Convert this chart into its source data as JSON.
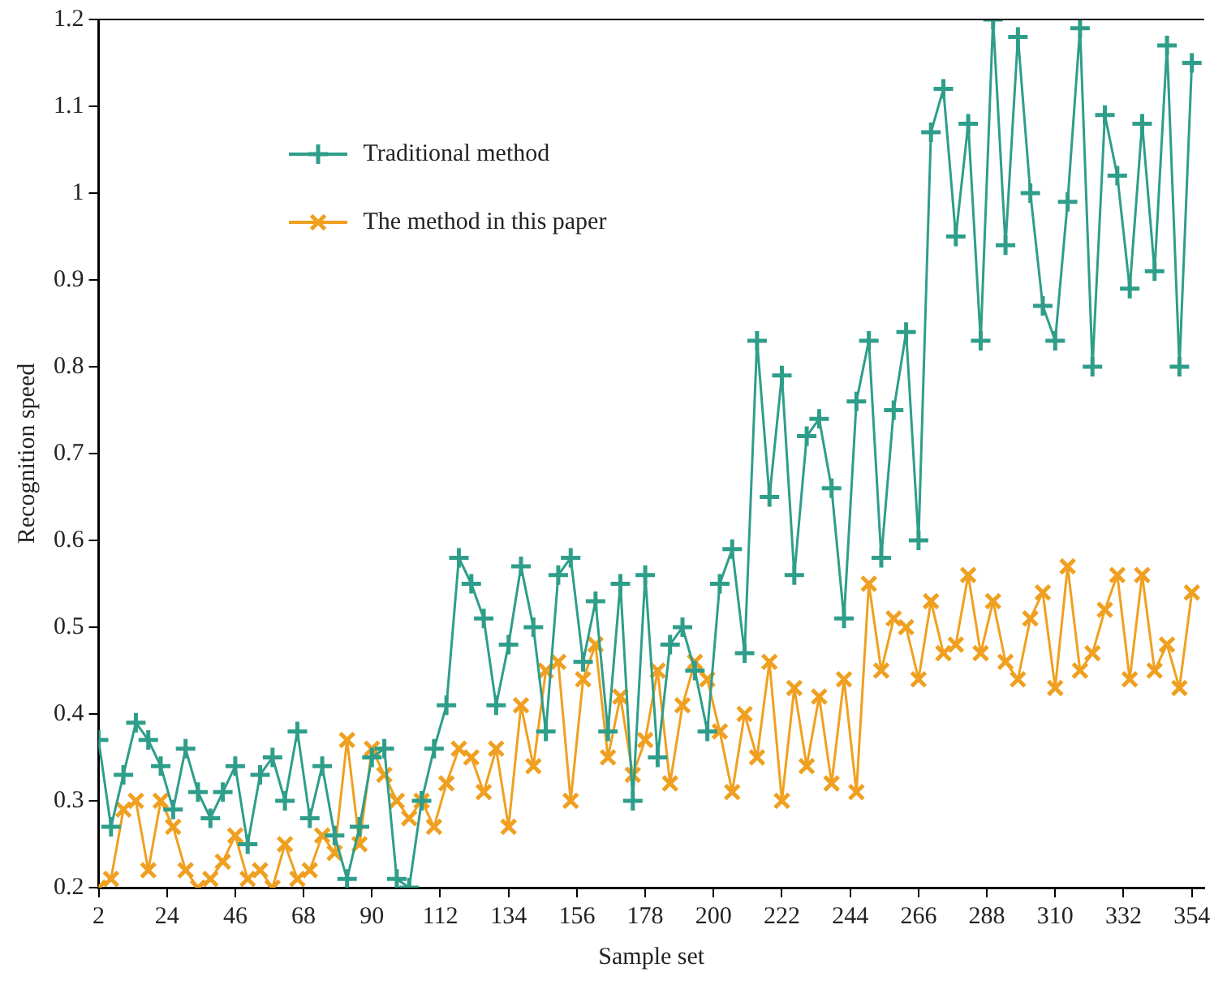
{
  "chart_data": {
    "type": "line",
    "xlabel": "Sample set",
    "ylabel": "Recognition speed",
    "x": [
      2,
      6,
      10,
      14,
      18,
      22,
      26,
      30,
      34,
      38,
      42,
      46,
      50,
      54,
      58,
      62,
      66,
      70,
      74,
      78,
      82,
      86,
      90,
      94,
      98,
      102,
      106,
      110,
      114,
      118,
      122,
      126,
      130,
      134,
      138,
      142,
      146,
      150,
      154,
      158,
      162,
      166,
      170,
      174,
      178,
      182,
      186,
      190,
      194,
      198,
      202,
      206,
      210,
      214,
      218,
      222,
      226,
      230,
      234,
      238,
      242,
      246,
      250,
      254,
      258,
      262,
      266,
      270,
      274,
      278,
      282,
      286,
      290,
      294,
      298,
      302,
      306,
      310,
      314,
      318,
      322,
      326,
      330,
      334,
      338,
      342,
      346,
      350,
      354
    ],
    "series": [
      {
        "name": "Traditional method",
        "color": "#2e9e8a",
        "marker": "cross",
        "values": [
          0.37,
          0.27,
          0.33,
          0.39,
          0.37,
          0.34,
          0.29,
          0.36,
          0.31,
          0.28,
          0.31,
          0.34,
          0.25,
          0.33,
          0.35,
          0.3,
          0.38,
          0.28,
          0.34,
          0.26,
          0.21,
          0.27,
          0.35,
          0.36,
          0.21,
          0.2,
          0.3,
          0.36,
          0.41,
          0.58,
          0.55,
          0.51,
          0.41,
          0.48,
          0.57,
          0.5,
          0.38,
          0.56,
          0.58,
          0.46,
          0.53,
          0.38,
          0.55,
          0.3,
          0.56,
          0.35,
          0.48,
          0.5,
          0.45,
          0.38,
          0.55,
          0.59,
          0.47,
          0.83,
          0.65,
          0.79,
          0.56,
          0.72,
          0.74,
          0.66,
          0.51,
          0.76,
          0.83,
          0.58,
          0.75,
          0.84,
          0.6,
          1.07,
          1.12,
          0.95,
          1.08,
          0.83,
          1.2,
          0.94,
          1.18,
          1.0,
          0.87,
          0.83,
          0.99,
          1.19,
          0.8,
          1.09,
          1.02,
          0.89,
          1.08,
          0.91,
          1.17,
          0.8,
          1.15
        ]
      },
      {
        "name": "The method in this paper",
        "color": "#f0a020",
        "marker": "cross",
        "values": [
          0.2,
          0.21,
          0.29,
          0.3,
          0.22,
          0.3,
          0.27,
          0.22,
          0.2,
          0.21,
          0.23,
          0.26,
          0.21,
          0.22,
          0.2,
          0.25,
          0.21,
          0.22,
          0.26,
          0.24,
          0.37,
          0.25,
          0.36,
          0.33,
          0.3,
          0.28,
          0.3,
          0.27,
          0.32,
          0.36,
          0.35,
          0.31,
          0.36,
          0.27,
          0.41,
          0.34,
          0.45,
          0.46,
          0.3,
          0.44,
          0.48,
          0.35,
          0.42,
          0.33,
          0.37,
          0.45,
          0.32,
          0.41,
          0.46,
          0.44,
          0.38,
          0.31,
          0.4,
          0.35,
          0.46,
          0.3,
          0.43,
          0.34,
          0.42,
          0.32,
          0.44,
          0.31,
          0.55,
          0.45,
          0.51,
          0.5,
          0.44,
          0.53,
          0.47,
          0.48,
          0.56,
          0.47,
          0.53,
          0.46,
          0.44,
          0.51,
          0.54,
          0.43,
          0.57,
          0.45,
          0.47,
          0.52,
          0.56,
          0.44,
          0.56,
          0.45,
          0.48,
          0.43,
          0.54
        ]
      }
    ],
    "xlim": [
      2,
      358
    ],
    "xticks": [
      2,
      24,
      46,
      68,
      90,
      112,
      134,
      156,
      178,
      200,
      222,
      244,
      266,
      288,
      310,
      332,
      354
    ],
    "ylim": [
      0.2,
      1.2
    ],
    "yticks": [
      0.2,
      0.3,
      0.4,
      0.5,
      0.6,
      0.7,
      0.8,
      0.9,
      1,
      1.1,
      1.2
    ],
    "grid": false,
    "legend": "top left",
    "line_style": "solid"
  }
}
